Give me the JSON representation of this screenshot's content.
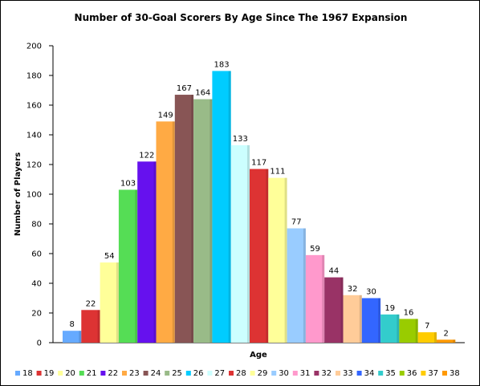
{
  "chart_data": {
    "type": "bar",
    "title": "Number of 30-Goal Scorers By Age Since The 1967 Expansion",
    "xlabel": "Age",
    "ylabel": "Number of Players",
    "ylim": [
      0,
      200
    ],
    "yticks": [
      0,
      20,
      40,
      60,
      80,
      100,
      120,
      140,
      160,
      180,
      200
    ],
    "grid": false,
    "legend_position": "bottom",
    "categories": [
      "18",
      "19",
      "20",
      "21",
      "22",
      "23",
      "24",
      "25",
      "26",
      "27",
      "28",
      "29",
      "30",
      "31",
      "32",
      "33",
      "34",
      "35",
      "36",
      "37",
      "38"
    ],
    "values": [
      8,
      22,
      54,
      103,
      122,
      149,
      167,
      164,
      183,
      133,
      117,
      111,
      77,
      59,
      44,
      32,
      30,
      19,
      16,
      7,
      2
    ],
    "colors": [
      "#66aaff",
      "#dd3333",
      "#ffff99",
      "#55dd55",
      "#6611ee",
      "#ffaa44",
      "#885555",
      "#99bb88",
      "#00ccff",
      "#ccffff",
      "#dd3333",
      "#ffff99",
      "#99ccff",
      "#ff99cc",
      "#993366",
      "#ffcc99",
      "#3366ff",
      "#33cccc",
      "#99cc00",
      "#ffcc00",
      "#ff9900"
    ]
  }
}
